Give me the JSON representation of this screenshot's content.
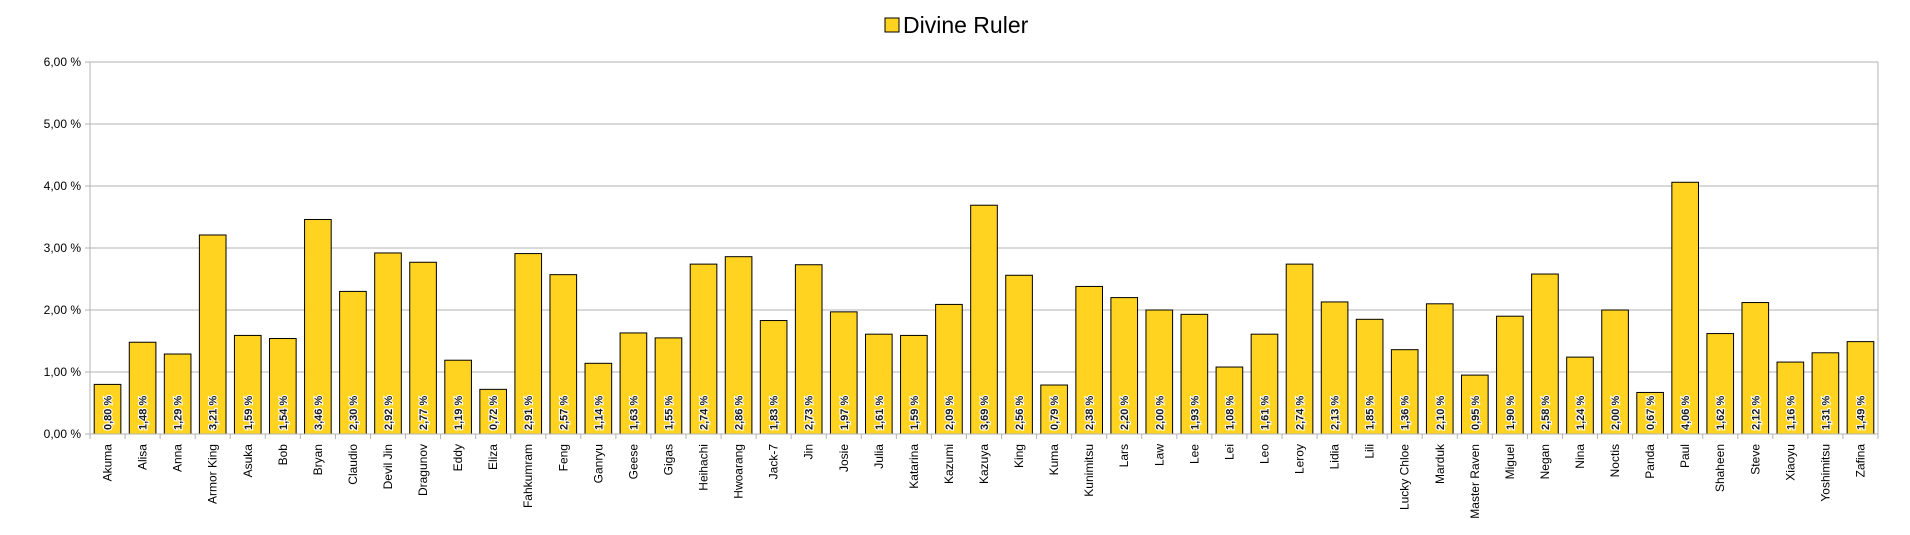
{
  "chart_data": {
    "type": "bar",
    "legend": {
      "position": "top-center"
    },
    "series": [
      {
        "name": "Divine Ruler",
        "color": "#FFD320"
      }
    ],
    "categories": [
      "Akuma",
      "Alisa",
      "Anna",
      "Armor King",
      "Asuka",
      "Bob",
      "Bryan",
      "Claudio",
      "Devil Jin",
      "Dragunov",
      "Eddy",
      "Eliza",
      "Fahkumram",
      "Feng",
      "Ganryu",
      "Geese",
      "Gigas",
      "Heihachi",
      "Hwoarang",
      "Jack-7",
      "Jin",
      "Josie",
      "Julia",
      "Katarina",
      "Kazumi",
      "Kazuya",
      "King",
      "Kuma",
      "Kunimitsu",
      "Lars",
      "Law",
      "Lee",
      "Lei",
      "Leo",
      "Leroy",
      "Lidia",
      "Lili",
      "Lucky Chloe",
      "Marduk",
      "Master Raven",
      "Miguel",
      "Negan",
      "Nina",
      "Noctis",
      "Panda",
      "Paul",
      "Shaheen",
      "Steve",
      "Xiaoyu",
      "Yoshimitsu",
      "Zafina"
    ],
    "values": [
      0.8,
      1.48,
      1.29,
      3.21,
      1.59,
      1.54,
      3.46,
      2.3,
      2.92,
      2.77,
      1.19,
      0.72,
      2.91,
      2.57,
      1.14,
      1.63,
      1.55,
      2.74,
      2.86,
      1.83,
      2.73,
      1.97,
      1.61,
      1.59,
      2.09,
      3.69,
      2.56,
      0.79,
      2.38,
      2.2,
      2.0,
      1.93,
      1.08,
      1.61,
      2.74,
      2.13,
      1.85,
      1.36,
      2.1,
      0.95,
      1.9,
      2.58,
      1.24,
      2.0,
      0.67,
      4.06,
      1.62,
      2.12,
      1.16,
      1.31,
      1.49
    ],
    "data_labels": [
      "0,80 %",
      "1,48 %",
      "1,29 %",
      "3,21 %",
      "1,59 %",
      "1,54 %",
      "3,46 %",
      "2,30 %",
      "2,92 %",
      "2,77 %",
      "1,19 %",
      "0,72 %",
      "2,91 %",
      "2,57 %",
      "1,14 %",
      "1,63 %",
      "1,55 %",
      "2,74 %",
      "2,86 %",
      "1,83 %",
      "2,73 %",
      "1,97 %",
      "1,61 %",
      "1,59 %",
      "2,09 %",
      "3,69 %",
      "2,56 %",
      "0,79 %",
      "2,38 %",
      "2,20 %",
      "2,00 %",
      "1,93 %",
      "1,08 %",
      "1,61 %",
      "2,74 %",
      "2,13 %",
      "1,85 %",
      "1,36 %",
      "2,10 %",
      "0,95 %",
      "1,90 %",
      "2,58 %",
      "1,24 %",
      "2,00 %",
      "0,67 %",
      "4,06 %",
      "1,62 %",
      "2,12 %",
      "1,16 %",
      "1,31 %",
      "1,49 %"
    ],
    "y_ticks": [
      0,
      1,
      2,
      3,
      4,
      5,
      6
    ],
    "y_tick_labels": [
      "0,00 %",
      "1,00 %",
      "2,00 %",
      "3,00 %",
      "4,00 %",
      "5,00 %",
      "6,00 %"
    ],
    "ylim": [
      0,
      6
    ],
    "grid": true
  }
}
